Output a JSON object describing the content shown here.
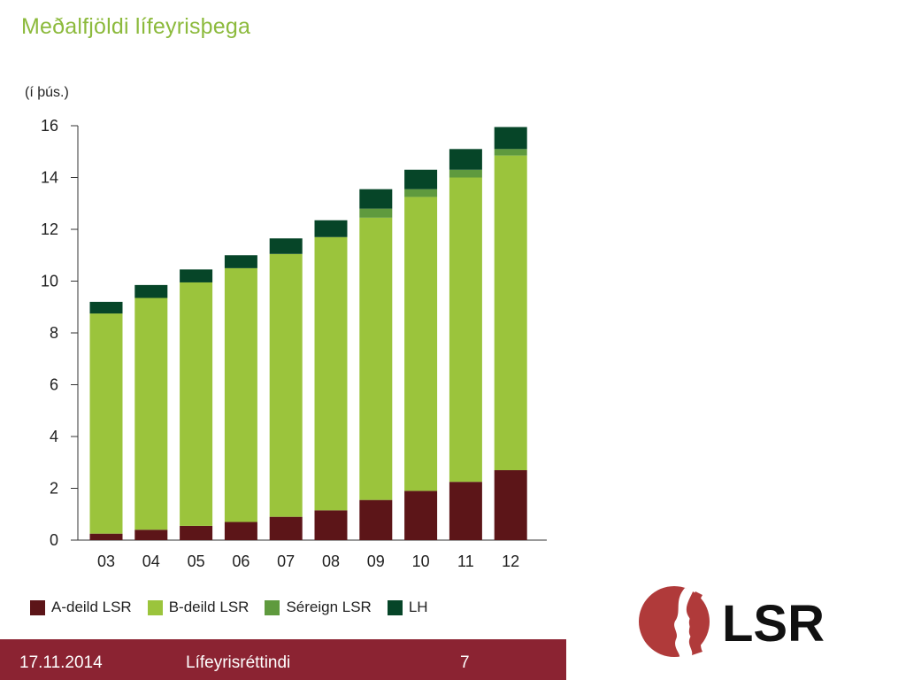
{
  "slide": {
    "title": "Meðalfjöldi lífeyrisþega",
    "unit_label": "(í þús.)"
  },
  "chart_data": {
    "type": "bar",
    "stacked": true,
    "title": "Meðalfjöldi lífeyrisþega",
    "ylabel": "(í þús.)",
    "xlabel": "",
    "ylim": [
      0,
      16
    ],
    "yticks": [
      0,
      2,
      4,
      6,
      8,
      10,
      12,
      14,
      16
    ],
    "grid": false,
    "legend_position": "bottom",
    "categories": [
      "03",
      "04",
      "05",
      "06",
      "07",
      "08",
      "09",
      "10",
      "11",
      "12"
    ],
    "series": [
      {
        "name": "A-deild LSR",
        "color": "#5c1518",
        "values": [
          0.25,
          0.4,
          0.55,
          0.7,
          0.9,
          1.15,
          1.55,
          1.9,
          2.25,
          2.7
        ]
      },
      {
        "name": "B-deild LSR",
        "color": "#9bc43c",
        "values": [
          8.5,
          8.95,
          9.4,
          9.8,
          10.15,
          10.55,
          10.9,
          11.35,
          11.75,
          12.15
        ]
      },
      {
        "name": "Séreign LSR",
        "color": "#5f9a3e",
        "values": [
          0.0,
          0.0,
          0.0,
          0.0,
          0.0,
          0.0,
          0.35,
          0.3,
          0.3,
          0.25
        ]
      },
      {
        "name": "LH",
        "color": "#064528",
        "values": [
          0.45,
          0.5,
          0.5,
          0.5,
          0.6,
          0.65,
          0.75,
          0.75,
          0.8,
          0.85
        ]
      }
    ]
  },
  "logo": {
    "text": "LSR",
    "icon": "faces-logo-icon",
    "color": "#b03a3a"
  },
  "footer": {
    "date": "17.11.2014",
    "title": "Lífeyrisréttindi",
    "page": "7",
    "color": "#8b2332"
  }
}
